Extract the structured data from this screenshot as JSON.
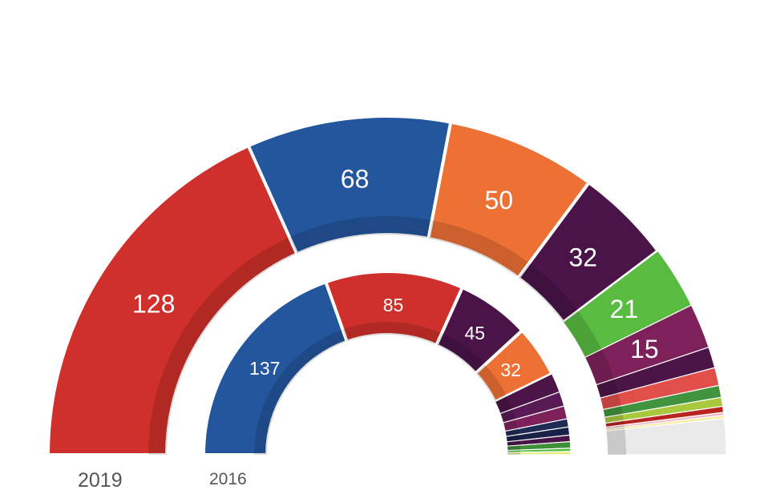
{
  "chart_data": {
    "type": "pie",
    "variant": "semicircle-parliament-donut",
    "rings": [
      {
        "name": "2019",
        "total_seats": 350,
        "seats": [
          {
            "value": 128,
            "color": "#d0302b",
            "label": "128"
          },
          {
            "value": 68,
            "color": "#23569d",
            "label": "68"
          },
          {
            "value": 50,
            "color": "#ed7034",
            "label": "50"
          },
          {
            "value": 32,
            "color": "#4a1449",
            "label": "32"
          },
          {
            "value": 21,
            "color": "#59bc41",
            "label": "21"
          },
          {
            "value": 15,
            "color": "#7e215b",
            "label": "15"
          },
          {
            "value": 7,
            "color": "#4b1548",
            "label": ""
          },
          {
            "value": 6,
            "color": "#e04f4a",
            "label": ""
          },
          {
            "value": 4,
            "color": "#42933d",
            "label": ""
          },
          {
            "value": 3,
            "color": "#a8c93d",
            "label": ""
          },
          {
            "value": 2,
            "color": "#b9241e",
            "label": ""
          },
          {
            "value": 1,
            "color": "#f2b6c8",
            "label": ""
          },
          {
            "value": 1,
            "color": "#f4ee9c",
            "label": ""
          },
          {
            "value": 12,
            "color": "#eaeaea",
            "label": ""
          }
        ]
      },
      {
        "name": "2016",
        "total_seats": 350,
        "seats": [
          {
            "value": 137,
            "color": "#23569d",
            "label": "137"
          },
          {
            "value": 85,
            "color": "#d0302b",
            "label": "85"
          },
          {
            "value": 45,
            "color": "#4a1449",
            "label": "45"
          },
          {
            "value": 32,
            "color": "#ed7034",
            "label": "32"
          },
          {
            "value": 12,
            "color": "#4b1548",
            "label": ""
          },
          {
            "value": 9,
            "color": "#5a1a55",
            "label": ""
          },
          {
            "value": 8,
            "color": "#7e215b",
            "label": ""
          },
          {
            "value": 5,
            "color": "#1e2b55",
            "label": ""
          },
          {
            "value": 5,
            "color": "#1a2148",
            "label": ""
          },
          {
            "value": 4,
            "color": "#4a1449",
            "label": ""
          },
          {
            "value": 4,
            "color": "#3f8f3a",
            "label": ""
          },
          {
            "value": 2,
            "color": "#59bc41",
            "label": ""
          },
          {
            "value": 2,
            "color": "#e6ec80",
            "label": ""
          }
        ]
      }
    ]
  },
  "labels": {
    "year_outer": "2019",
    "year_inner": "2016"
  }
}
